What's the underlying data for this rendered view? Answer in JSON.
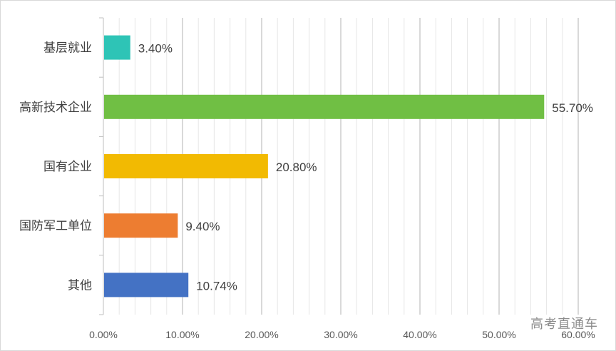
{
  "chart_data": {
    "type": "bar",
    "orientation": "horizontal",
    "categories": [
      "基层就业",
      "高新技术企业",
      "国有企业",
      "国防军工单位",
      "其他"
    ],
    "values": [
      3.4,
      55.7,
      20.8,
      9.4,
      10.74
    ],
    "value_labels": [
      "3.40%",
      "55.70%",
      "20.80%",
      "9.40%",
      "10.74%"
    ],
    "colors": [
      "#2EC4B6",
      "#70BF44",
      "#F2BA02",
      "#ED7D31",
      "#4472C4"
    ],
    "xlim": [
      0,
      60
    ],
    "x_ticks": [
      0,
      10,
      20,
      30,
      40,
      50,
      60
    ],
    "x_tick_labels": [
      "0.00%",
      "10.00%",
      "20.00%",
      "30.00%",
      "40.00%",
      "50.00%",
      "60.00%"
    ],
    "grid": true,
    "title": "",
    "xlabel": "",
    "ylabel": ""
  },
  "watermark": "高考直通车"
}
